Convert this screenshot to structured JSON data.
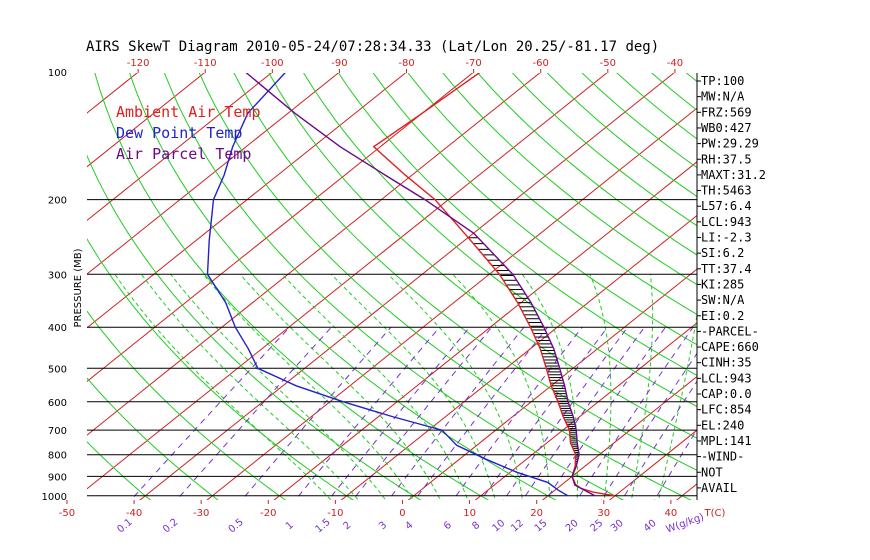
{
  "chart_data": {
    "type": "line",
    "chart_kind": "skew-T log-P",
    "title": "AIRS SkewT Diagram 2010-05-24/07:28:34.33 (Lat/Lon 20.25/-81.17 deg)",
    "ylabel": "PRESSURE (MB)",
    "xlabel": "T(C)",
    "mixing_ratio_label": "W(g/kg)",
    "pressure_ticks": [
      100,
      200,
      300,
      400,
      500,
      600,
      700,
      800,
      900,
      1000
    ],
    "pressure_range": [
      100,
      1050
    ],
    "y_scale": "log",
    "top_temp_ticks": [
      -120,
      -110,
      -100,
      -90,
      -80,
      -70,
      -60,
      -50,
      -40
    ],
    "bottom_temp_ticks": [
      -50,
      -40,
      -30,
      -20,
      -10,
      0,
      10,
      20,
      30,
      40
    ],
    "mixing_ratio_ticks": [
      "0.1",
      "0.2",
      "0.5",
      "1",
      "1.5",
      "2",
      "3",
      "4",
      "6",
      "8",
      "10",
      "12",
      "15",
      "20",
      "25",
      "30",
      "40"
    ],
    "mixing_ratio_values": [
      0.1,
      0.2,
      0.5,
      1,
      1.5,
      2,
      3,
      4,
      6,
      8,
      10,
      12,
      15,
      20,
      25,
      30,
      40
    ],
    "isotherm_range": [
      -170,
      40
    ],
    "isotherm_step": 10,
    "legend_position": "top-left",
    "legend": [
      {
        "label": "Ambient Air Temp",
        "color": "#e02020"
      },
      {
        "label": "Dew Point Temp",
        "color": "#2222cc"
      },
      {
        "label": "Air Parcel Temp",
        "color": "#6a0a8a"
      }
    ],
    "colors": {
      "isotherm": "#cc2222",
      "dry_adiabat": "#22cc22",
      "moist_adiabat": "#22cc22",
      "mixing_ratio": "#7733cc",
      "cape_hatch": "#000000",
      "pressure_line": "#000000"
    },
    "series": [
      {
        "name": "Ambient Air Temp",
        "color": "#e02020",
        "points": [
          {
            "p": 1000,
            "t": 30.0
          },
          {
            "p": 980,
            "t": 26.0
          },
          {
            "p": 960,
            "t": 23.5
          },
          {
            "p": 940,
            "t": 22.0
          },
          {
            "p": 900,
            "t": 20.0
          },
          {
            "p": 850,
            "t": 18.5
          },
          {
            "p": 800,
            "t": 16.5
          },
          {
            "p": 750,
            "t": 13.5
          },
          {
            "p": 700,
            "t": 11.0
          },
          {
            "p": 650,
            "t": 7.5
          },
          {
            "p": 600,
            "t": 4.0
          },
          {
            "p": 550,
            "t": 0.0
          },
          {
            "p": 500,
            "t": -4.0
          },
          {
            "p": 450,
            "t": -8.5
          },
          {
            "p": 400,
            "t": -14.0
          },
          {
            "p": 350,
            "t": -20.5
          },
          {
            "p": 300,
            "t": -28.5
          },
          {
            "p": 250,
            "t": -39.0
          },
          {
            "p": 200,
            "t": -52.0
          },
          {
            "p": 175,
            "t": -61.0
          },
          {
            "p": 150,
            "t": -71.0
          },
          {
            "p": 125,
            "t": -70.0
          },
          {
            "p": 100,
            "t": -69.0
          }
        ]
      },
      {
        "name": "Dew Point Temp",
        "color": "#2222cc",
        "points": [
          {
            "p": 1000,
            "t": 23.0
          },
          {
            "p": 970,
            "t": 20.5
          },
          {
            "p": 930,
            "t": 17.5
          },
          {
            "p": 880,
            "t": 11.0
          },
          {
            "p": 820,
            "t": 4.0
          },
          {
            "p": 760,
            "t": -3.0
          },
          {
            "p": 700,
            "t": -8.0
          },
          {
            "p": 650,
            "t": -18.0
          },
          {
            "p": 600,
            "t": -28.0
          },
          {
            "p": 550,
            "t": -38.0
          },
          {
            "p": 500,
            "t": -47.0
          },
          {
            "p": 450,
            "t": -52.0
          },
          {
            "p": 400,
            "t": -58.0
          },
          {
            "p": 350,
            "t": -64.0
          },
          {
            "p": 300,
            "t": -72.0
          },
          {
            "p": 250,
            "t": -78.0
          },
          {
            "p": 200,
            "t": -85.0
          },
          {
            "p": 175,
            "t": -88.0
          },
          {
            "p": 150,
            "t": -92.0
          },
          {
            "p": 125,
            "t": -96.0
          },
          {
            "p": 100,
            "t": -98.0
          }
        ]
      },
      {
        "name": "Air Parcel Temp",
        "color": "#6a0a8a",
        "points": [
          {
            "p": 1000,
            "t": 27.0
          },
          {
            "p": 960,
            "t": 23.5
          },
          {
            "p": 943,
            "t": 22.0
          },
          {
            "p": 900,
            "t": 20.0
          },
          {
            "p": 854,
            "t": 18.8
          },
          {
            "p": 800,
            "t": 17.0
          },
          {
            "p": 750,
            "t": 14.5
          },
          {
            "p": 700,
            "t": 12.0
          },
          {
            "p": 650,
            "t": 9.0
          },
          {
            "p": 600,
            "t": 5.5
          },
          {
            "p": 550,
            "t": 2.0
          },
          {
            "p": 500,
            "t": -2.0
          },
          {
            "p": 450,
            "t": -6.5
          },
          {
            "p": 400,
            "t": -12.0
          },
          {
            "p": 350,
            "t": -18.5
          },
          {
            "p": 300,
            "t": -26.5
          },
          {
            "p": 250,
            "t": -37.5
          },
          {
            "p": 240,
            "t": -40.0
          },
          {
            "p": 200,
            "t": -53.5
          },
          {
            "p": 175,
            "t": -64.0
          },
          {
            "p": 150,
            "t": -76.0
          },
          {
            "p": 125,
            "t": -89.0
          },
          {
            "p": 100,
            "t": -104.0
          }
        ]
      }
    ],
    "cape_region": {
      "p_top": 240,
      "p_bottom": 854
    }
  },
  "indices": [
    "TP:100",
    "MW:N/A",
    "FRZ:569",
    "WB0:427",
    "PW:29.29",
    "RH:37.5",
    "MAXT:31.2",
    "TH:5463",
    "L57:6.4",
    "LCL:943",
    "LI:-2.3",
    "SI:6.2",
    "TT:37.4",
    "KI:285",
    "SW:N/A",
    "EI:0.2",
    "-PARCEL-",
    "CAPE:660",
    "CINH:35",
    "LCL:943",
    "CAP:0.0",
    "LFC:854",
    "EL:240",
    "MPL:141",
    "-WIND-",
    "NOT",
    "AVAIL"
  ]
}
